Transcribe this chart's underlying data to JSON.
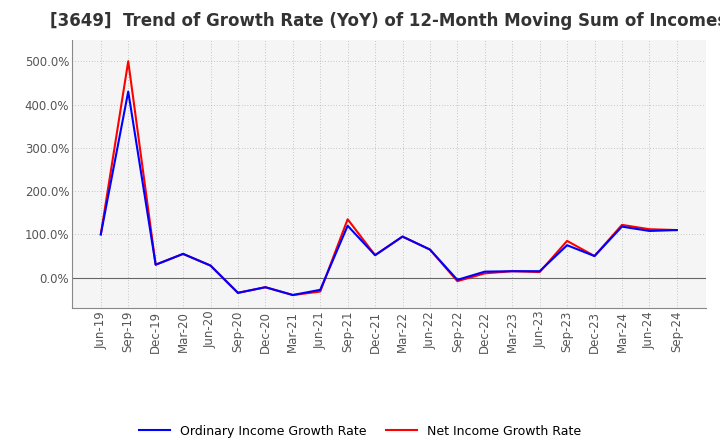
{
  "title": "[3649]  Trend of Growth Rate (YoY) of 12-Month Moving Sum of Incomes",
  "x_labels": [
    "Jun-19",
    "Sep-19",
    "Dec-19",
    "Mar-20",
    "Jun-20",
    "Sep-20",
    "Dec-20",
    "Mar-21",
    "Jun-21",
    "Sep-21",
    "Dec-21",
    "Mar-22",
    "Jun-22",
    "Sep-22",
    "Dec-22",
    "Mar-23",
    "Jun-23",
    "Sep-23",
    "Dec-23",
    "Mar-24",
    "Jun-24",
    "Sep-24"
  ],
  "ordinary_income": [
    1.0,
    4.3,
    0.3,
    0.55,
    0.28,
    -0.35,
    -0.22,
    -0.4,
    -0.28,
    1.2,
    0.52,
    0.95,
    0.65,
    -0.05,
    0.14,
    0.15,
    0.15,
    0.75,
    0.5,
    1.18,
    1.08,
    1.1
  ],
  "net_income": [
    1.0,
    5.0,
    0.3,
    0.55,
    0.28,
    -0.35,
    -0.22,
    -0.4,
    -0.32,
    1.35,
    0.52,
    0.95,
    0.65,
    -0.08,
    0.1,
    0.15,
    0.13,
    0.85,
    0.5,
    1.22,
    1.12,
    1.1
  ],
  "ylim": [
    -0.7,
    5.5
  ],
  "yticks": [
    0.0,
    1.0,
    2.0,
    3.0,
    4.0,
    5.0
  ],
  "ytick_labels": [
    "0.0%",
    "100.0%",
    "200.0%",
    "300.0%",
    "400.0%",
    "500.0%"
  ],
  "ordinary_color": "#0000ff",
  "net_color": "#ff0000",
  "legend_ordinary": "Ordinary Income Growth Rate",
  "legend_net": "Net Income Growth Rate",
  "background_color": "#ffffff",
  "plot_bg_color": "#f5f5f5",
  "grid_color": "#999999",
  "title_fontsize": 12,
  "tick_fontsize": 8.5
}
